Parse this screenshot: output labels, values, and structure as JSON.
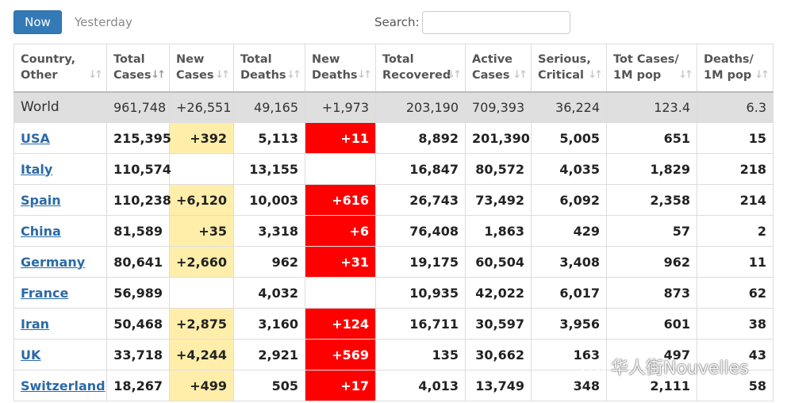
{
  "toolbar": {
    "now_label": "Now",
    "yesterday_label": "Yesterday",
    "search_label": "Search:",
    "search_value": ""
  },
  "table": {
    "headers": [
      [
        "Country,",
        "Other"
      ],
      [
        "Total",
        "Cases"
      ],
      [
        "New",
        "Cases"
      ],
      [
        "Total",
        "Deaths"
      ],
      [
        "New",
        "Deaths"
      ],
      [
        "Total",
        "Recovered"
      ],
      [
        "Active",
        "Cases"
      ],
      [
        "Serious,",
        "Critical"
      ],
      [
        "Tot Cases/",
        "1M pop"
      ],
      [
        "Deaths/",
        "1M pop"
      ]
    ],
    "world": [
      "World",
      "961,748",
      "+26,551",
      "49,165",
      "+1,973",
      "203,190",
      "709,393",
      "36,224",
      "123.4",
      "6.3"
    ],
    "rows": [
      [
        "USA",
        "215,395",
        "+392",
        "5,113",
        "+11",
        "8,892",
        "201,390",
        "5,005",
        "651",
        "15"
      ],
      [
        "Italy",
        "110,574",
        "",
        "13,155",
        "",
        "16,847",
        "80,572",
        "4,035",
        "1,829",
        "218"
      ],
      [
        "Spain",
        "110,238",
        "+6,120",
        "10,003",
        "+616",
        "26,743",
        "73,492",
        "6,092",
        "2,358",
        "214"
      ],
      [
        "China",
        "81,589",
        "+35",
        "3,318",
        "+6",
        "76,408",
        "1,863",
        "429",
        "57",
        "2"
      ],
      [
        "Germany",
        "80,641",
        "+2,660",
        "962",
        "+31",
        "19,175",
        "60,504",
        "3,408",
        "962",
        "11"
      ],
      [
        "France",
        "56,989",
        "",
        "4,032",
        "",
        "10,935",
        "42,022",
        "6,017",
        "873",
        "62"
      ],
      [
        "Iran",
        "50,468",
        "+2,875",
        "3,160",
        "+124",
        "16,711",
        "30,597",
        "3,956",
        "601",
        "38"
      ],
      [
        "UK",
        "33,718",
        "+4,244",
        "2,921",
        "+569",
        "135",
        "30,662",
        "163",
        "497",
        "43"
      ],
      [
        "Switzerland",
        "18,267",
        "+499",
        "505",
        "+17",
        "4,013",
        "13,749",
        "348",
        "2,111",
        "58"
      ]
    ]
  },
  "watermark": "华人街Nouvelles",
  "colors": {
    "button_blue": "#337ab7",
    "new_cases_bg": "#ffeeaa",
    "new_deaths_bg": "#ff0000",
    "world_row_bg": "#dfdfdf",
    "link": "#2a6aa6"
  }
}
